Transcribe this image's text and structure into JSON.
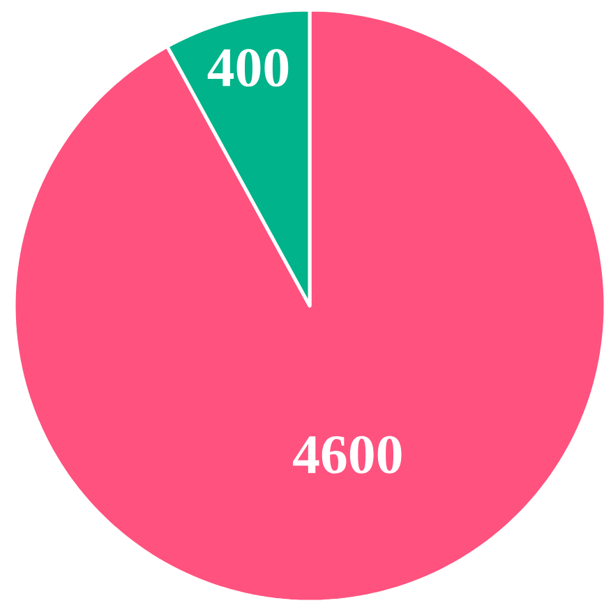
{
  "chart_data": {
    "type": "pie",
    "categories": [
      null,
      null
    ],
    "values": [
      4600,
      400
    ],
    "colors": [
      "#ff527f",
      "#00b38a"
    ],
    "data_labels": true
  }
}
